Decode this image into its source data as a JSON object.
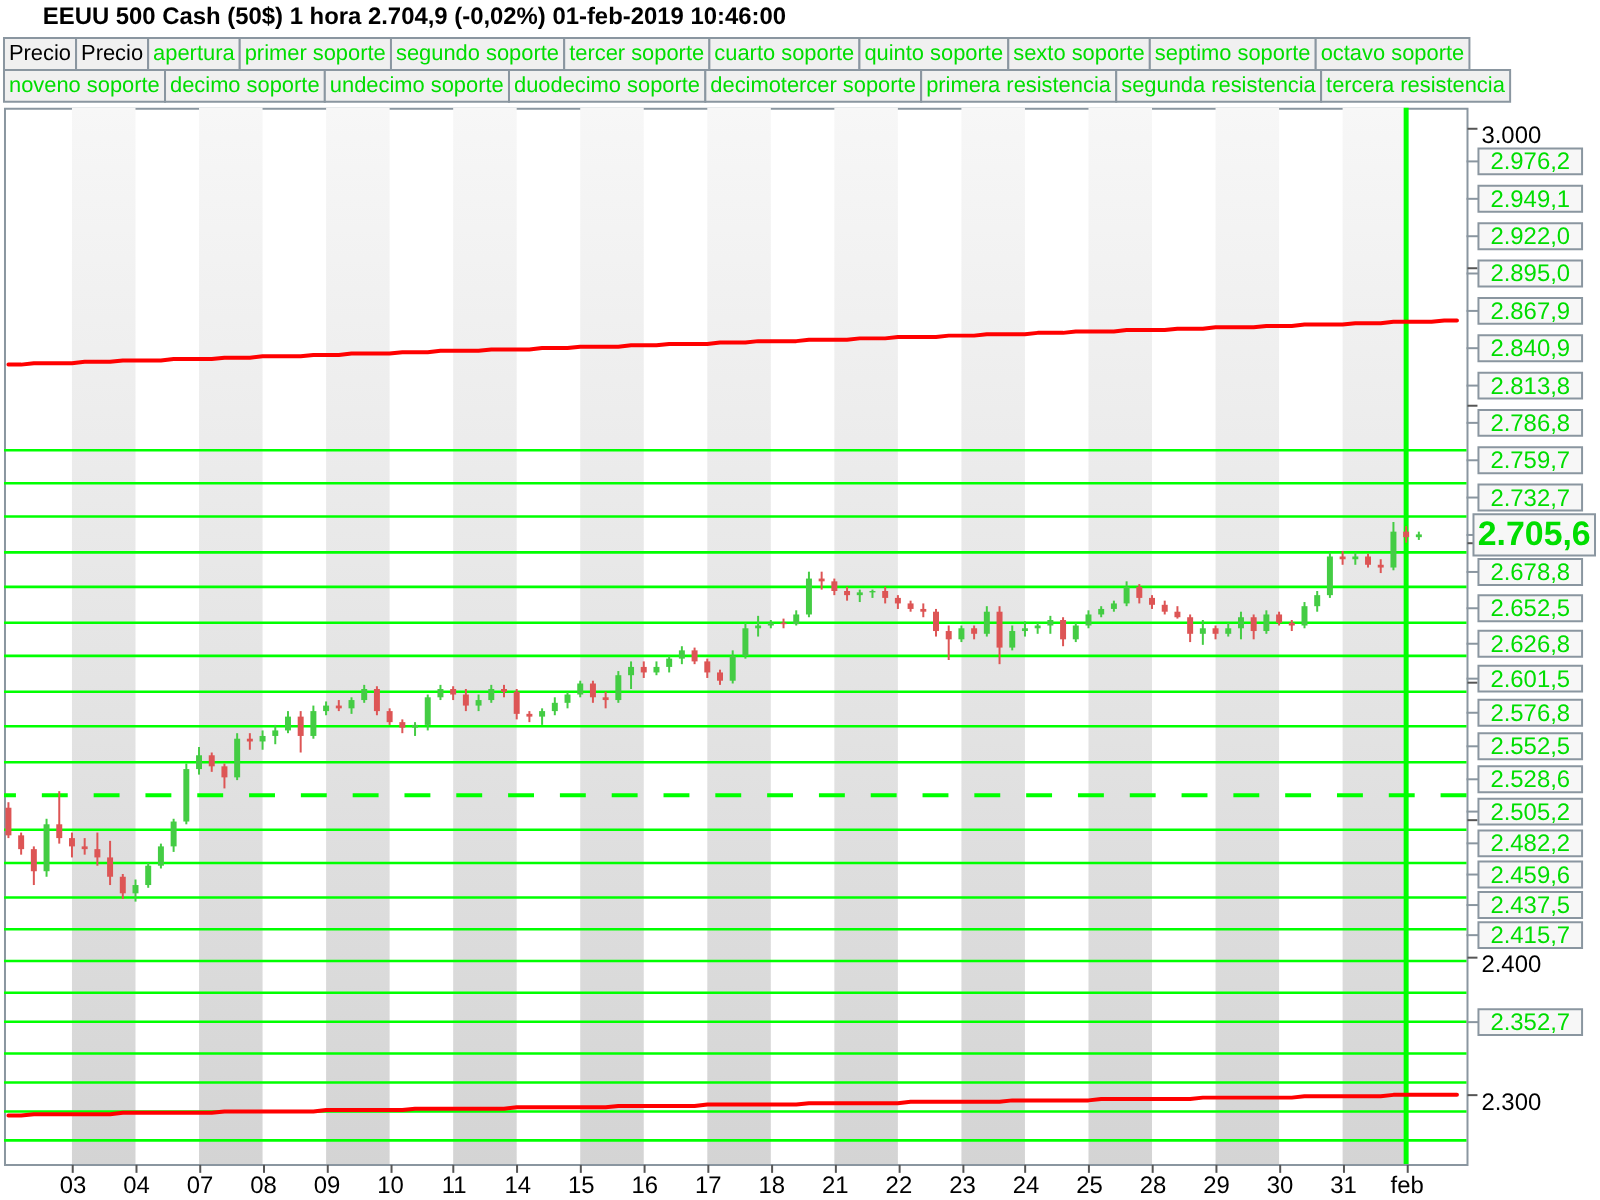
{
  "chart_data": {
    "type": "candlestick",
    "title": "EEUU 500 Cash (50$)   1 hora   2.704,9 (-0,02%)   01-feb-2019 10:46:00",
    "annotations": [
      "Precio",
      "Precio",
      "apertura",
      "primer soporte",
      "segundo soporte",
      "tercer soporte",
      "cuarto soporte",
      "quinto soporte",
      "sexto soporte",
      "septimo soporte",
      "octavo soporte",
      "noveno soporte",
      "decimo soporte",
      "undecimo soporte",
      "duodecimo soporte",
      "decimotercer soporte",
      "primera resistencia",
      "segunda resistencia",
      "tercera resistencia"
    ],
    "categories": [
      null,
      null,
      null,
      null,
      null,
      "03",
      null,
      null,
      null,
      null,
      "04",
      null,
      null,
      null,
      null,
      "07",
      null,
      null,
      null,
      null,
      "08",
      null,
      null,
      null,
      null,
      "09",
      null,
      null,
      null,
      null,
      "10",
      null,
      null,
      null,
      null,
      "11",
      null,
      null,
      null,
      null,
      "14",
      null,
      null,
      null,
      null,
      "15",
      null,
      null,
      null,
      null,
      "16",
      null,
      null,
      null,
      null,
      "17",
      null,
      null,
      null,
      null,
      "18",
      null,
      null,
      null,
      null,
      "21",
      null,
      null,
      null,
      null,
      "22",
      null,
      null,
      null,
      null,
      "23",
      null,
      null,
      null,
      null,
      "24",
      null,
      null,
      null,
      null,
      "25",
      null,
      null,
      null,
      null,
      "28",
      null,
      null,
      null,
      null,
      "29",
      null,
      null,
      null,
      null,
      "30",
      null,
      null,
      null,
      null,
      "31",
      null,
      null,
      null,
      null,
      "feb",
      null,
      null,
      null,
      null
    ],
    "ylim": [
      2250,
      3015
    ],
    "yticks": [
      {
        "value": 3000,
        "label": "3.000"
      },
      {
        "value": 2900,
        "label": null
      },
      {
        "value": 2800,
        "label": null
      },
      {
        "value": 2700,
        "label": null
      },
      {
        "value": 2600,
        "label": null
      },
      {
        "value": 2500,
        "label": null
      },
      {
        "value": 2400,
        "label": "2.400"
      },
      {
        "value": 2300,
        "label": "2.300"
      }
    ],
    "y2lim": [
      2250,
      3015
    ],
    "y2ticks": [
      {
        "value": 2976.2,
        "label": "2.976,2"
      },
      {
        "value": 2949.1,
        "label": "2.949,1"
      },
      {
        "value": 2922.0,
        "label": "2.922,0"
      },
      {
        "value": 2895.0,
        "label": "2.895,0"
      },
      {
        "value": 2867.9,
        "label": "2.867,9"
      },
      {
        "value": 2840.9,
        "label": "2.840,9"
      },
      {
        "value": 2813.8,
        "label": "2.813,8"
      },
      {
        "value": 2786.8,
        "label": "2.786,8"
      },
      {
        "value": 2759.7,
        "label": "2.759,7"
      },
      {
        "value": 2732.7,
        "label": "2.732,7"
      },
      {
        "value": 2705.6,
        "label": "2.705,6"
      },
      {
        "value": 2678.8,
        "label": "2.678,8"
      },
      {
        "value": 2652.5,
        "label": "2.652,5"
      },
      {
        "value": 2626.8,
        "label": "2.626,8"
      },
      {
        "value": 2601.5,
        "label": "2.601,5"
      },
      {
        "value": 2576.8,
        "label": "2.576,8"
      },
      {
        "value": 2552.5,
        "label": "2.552,5"
      },
      {
        "value": 2528.6,
        "label": "2.528,6"
      },
      {
        "value": 2505.2,
        "label": "2.505,2"
      },
      {
        "value": 2482.2,
        "label": "2.482,2"
      },
      {
        "value": 2459.6,
        "label": "2.459,6"
      },
      {
        "value": 2437.5,
        "label": "2.437,5"
      },
      {
        "value": 2415.7,
        "label": "2.415,7"
      },
      {
        "value": 2352.7,
        "label": "2.352,7"
      }
    ],
    "bands": [
      {
        "axis": "x",
        "from": "03",
        "to": "04",
        "color": "#d4d4d4"
      },
      {
        "axis": "x",
        "from": "07",
        "to": "08",
        "color": "#d4d4d4"
      },
      {
        "axis": "x",
        "from": "09",
        "to": "10",
        "color": "#d4d4d4"
      },
      {
        "axis": "x",
        "from": "11",
        "to": "14",
        "color": "#d4d4d4"
      },
      {
        "axis": "x",
        "from": "15",
        "to": "16",
        "color": "#d4d4d4"
      },
      {
        "axis": "x",
        "from": "17",
        "to": "18",
        "color": "#d4d4d4"
      },
      {
        "axis": "x",
        "from": "21",
        "to": "22",
        "color": "#d4d4d4"
      },
      {
        "axis": "x",
        "from": "23",
        "to": "24",
        "color": "#d4d4d4"
      },
      {
        "axis": "x",
        "from": "25",
        "to": "28",
        "color": "#d4d4d4"
      },
      {
        "axis": "x",
        "from": "29",
        "to": "30",
        "color": "#d4d4d4"
      },
      {
        "axis": "x",
        "from": "31",
        "to": "feb",
        "color": "#d4d4d4"
      }
    ],
    "ref_lines": [
      {
        "axis": "y",
        "value": 2767,
        "color": "#00ff00"
      },
      {
        "axis": "y",
        "value": 2743,
        "color": "#00ff00"
      },
      {
        "axis": "y",
        "value": 2719,
        "color": "#00ff00"
      },
      {
        "axis": "y",
        "value": 2693,
        "color": "#00ff00"
      },
      {
        "axis": "y",
        "value": 2668,
        "color": "#00ff00"
      },
      {
        "axis": "y",
        "value": 2642,
        "color": "#00ff00"
      },
      {
        "axis": "y",
        "value": 2618,
        "color": "#00ff00"
      },
      {
        "axis": "y",
        "value": 2592,
        "color": "#00ff00"
      },
      {
        "axis": "y",
        "value": 2567,
        "color": "#00ff00"
      },
      {
        "axis": "y",
        "value": 2541,
        "color": "#00ff00"
      },
      {
        "axis": "y",
        "value": 2517,
        "color": "#00ff00",
        "line_style": "dashed"
      },
      {
        "axis": "y",
        "value": 2492,
        "color": "#00ff00"
      },
      {
        "axis": "y",
        "value": 2468,
        "color": "#00ff00"
      },
      {
        "axis": "y",
        "value": 2443,
        "color": "#00ff00"
      },
      {
        "axis": "y",
        "value": 2420,
        "color": "#00ff00"
      },
      {
        "axis": "y",
        "value": 2397,
        "color": "#00ff00"
      },
      {
        "axis": "y",
        "value": 2374,
        "color": "#00ff00"
      },
      {
        "axis": "y",
        "value": 2353,
        "color": "#00ff00"
      },
      {
        "axis": "y",
        "value": 2330,
        "color": "#00ff00"
      },
      {
        "axis": "y",
        "value": 2309,
        "color": "#00ff00"
      },
      {
        "axis": "y",
        "value": 2288,
        "color": "#00ff00"
      },
      {
        "axis": "y",
        "value": 2267,
        "color": "#00ff00"
      },
      {
        "axis": "x",
        "value": "feb",
        "color": "#00ff00"
      }
    ],
    "series": [
      {
        "type": "line",
        "color": "#ff0000",
        "values": [
          2829,
          2829,
          2830,
          2830,
          2830,
          2830,
          2831,
          2831,
          2831,
          2832,
          2832,
          2832,
          2832,
          2833,
          2833,
          2833,
          2833,
          2834,
          2834,
          2834,
          2835,
          2835,
          2835,
          2835,
          2836,
          2836,
          2836,
          2837,
          2837,
          2837,
          2837,
          2838,
          2838,
          2838,
          2839,
          2839,
          2839,
          2839,
          2840,
          2840,
          2840,
          2840,
          2841,
          2841,
          2841,
          2842,
          2842,
          2842,
          2842,
          2843,
          2843,
          2843,
          2844,
          2844,
          2844,
          2844,
          2845,
          2845,
          2845,
          2846,
          2846,
          2846,
          2846,
          2847,
          2847,
          2847,
          2847,
          2848,
          2848,
          2848,
          2849,
          2849,
          2849,
          2849,
          2850,
          2850,
          2850,
          2851,
          2851,
          2851,
          2851,
          2852,
          2852,
          2852,
          2853,
          2853,
          2853,
          2853,
          2854,
          2854,
          2854,
          2854,
          2855,
          2855,
          2855,
          2856,
          2856,
          2856,
          2856,
          2857,
          2857,
          2857,
          2858,
          2858,
          2858,
          2858,
          2859,
          2859,
          2859,
          2860,
          2860,
          2860,
          2860,
          2861,
          2861
        ]
      },
      {
        "type": "line",
        "color": "#ff0000",
        "values": [
          2285,
          2285,
          2286,
          2286,
          2286,
          2286,
          2286,
          2286,
          2286,
          2287,
          2287,
          2287,
          2287,
          2287,
          2287,
          2287,
          2287,
          2288,
          2288,
          2288,
          2288,
          2288,
          2288,
          2288,
          2288,
          2289,
          2289,
          2289,
          2289,
          2289,
          2289,
          2289,
          2290,
          2290,
          2290,
          2290,
          2290,
          2290,
          2290,
          2290,
          2291,
          2291,
          2291,
          2291,
          2291,
          2291,
          2291,
          2291,
          2292,
          2292,
          2292,
          2292,
          2292,
          2292,
          2292,
          2293,
          2293,
          2293,
          2293,
          2293,
          2293,
          2293,
          2293,
          2294,
          2294,
          2294,
          2294,
          2294,
          2294,
          2294,
          2294,
          2295,
          2295,
          2295,
          2295,
          2295,
          2295,
          2295,
          2295,
          2296,
          2296,
          2296,
          2296,
          2296,
          2296,
          2296,
          2297,
          2297,
          2297,
          2297,
          2297,
          2297,
          2297,
          2297,
          2298,
          2298,
          2298,
          2298,
          2298,
          2298,
          2298,
          2298,
          2299,
          2299,
          2299,
          2299,
          2299,
          2299,
          2299,
          2300,
          2300,
          2300,
          2300,
          2300,
          2300
        ]
      }
    ],
    "ohlc": [
      [
        2508,
        2512,
        2486,
        2488
      ],
      [
        2488,
        2490,
        2474,
        2478
      ],
      [
        2478,
        2480,
        2452,
        2462
      ],
      [
        2462,
        2500,
        2458,
        2496
      ],
      [
        2496,
        2520,
        2482,
        2486
      ],
      [
        2486,
        2490,
        2472,
        2480
      ],
      [
        2480,
        2486,
        2474,
        2478
      ],
      [
        2478,
        2490,
        2466,
        2472
      ],
      [
        2472,
        2484,
        2452,
        2458
      ],
      [
        2458,
        2460,
        2442,
        2446
      ],
      [
        2446,
        2456,
        2440,
        2452
      ],
      [
        2452,
        2468,
        2450,
        2466
      ],
      [
        2466,
        2482,
        2464,
        2480
      ],
      [
        2480,
        2500,
        2476,
        2498
      ],
      [
        2498,
        2540,
        2496,
        2536
      ],
      [
        2536,
        2552,
        2532,
        2546
      ],
      [
        2546,
        2548,
        2534,
        2538
      ],
      [
        2538,
        2540,
        2522,
        2530
      ],
      [
        2530,
        2562,
        2528,
        2558
      ],
      [
        2558,
        2562,
        2550,
        2556
      ],
      [
        2556,
        2564,
        2550,
        2560
      ],
      [
        2560,
        2568,
        2554,
        2564
      ],
      [
        2564,
        2578,
        2562,
        2574
      ],
      [
        2574,
        2578,
        2548,
        2560
      ],
      [
        2560,
        2582,
        2558,
        2578
      ],
      [
        2578,
        2585,
        2575,
        2582
      ],
      [
        2582,
        2586,
        2578,
        2580
      ],
      [
        2580,
        2588,
        2576,
        2586
      ],
      [
        2586,
        2597,
        2584,
        2594
      ],
      [
        2594,
        2596,
        2575,
        2578
      ],
      [
        2578,
        2580,
        2568,
        2570
      ],
      [
        2570,
        2572,
        2562,
        2566
      ],
      [
        2566,
        2570,
        2560,
        2568
      ],
      [
        2568,
        2590,
        2564,
        2588
      ],
      [
        2588,
        2597,
        2586,
        2594
      ],
      [
        2594,
        2596,
        2586,
        2590
      ],
      [
        2590,
        2594,
        2578,
        2582
      ],
      [
        2582,
        2590,
        2578,
        2586
      ],
      [
        2586,
        2597,
        2584,
        2594
      ],
      [
        2594,
        2597,
        2588,
        2592
      ],
      [
        2592,
        2594,
        2572,
        2576
      ],
      [
        2576,
        2578,
        2570,
        2574
      ],
      [
        2574,
        2580,
        2568,
        2578
      ],
      [
        2578,
        2588,
        2575,
        2584
      ],
      [
        2584,
        2592,
        2580,
        2590
      ],
      [
        2590,
        2600,
        2588,
        2598
      ],
      [
        2598,
        2600,
        2584,
        2588
      ],
      [
        2588,
        2592,
        2580,
        2586
      ],
      [
        2586,
        2607,
        2584,
        2604
      ],
      [
        2604,
        2614,
        2594,
        2610
      ],
      [
        2610,
        2614,
        2602,
        2606
      ],
      [
        2606,
        2614,
        2604,
        2610
      ],
      [
        2610,
        2618,
        2606,
        2616
      ],
      [
        2616,
        2625,
        2612,
        2622
      ],
      [
        2622,
        2624,
        2612,
        2614
      ],
      [
        2614,
        2616,
        2602,
        2606
      ],
      [
        2606,
        2608,
        2597,
        2600
      ],
      [
        2600,
        2622,
        2598,
        2618
      ],
      [
        2618,
        2642,
        2616,
        2638
      ],
      [
        2638,
        2647,
        2632,
        2640
      ],
      [
        2640,
        2644,
        2638,
        2642
      ],
      [
        2642,
        2645,
        2638,
        2641
      ],
      [
        2641,
        2651,
        2640,
        2648
      ],
      [
        2648,
        2679,
        2646,
        2674
      ],
      [
        2674,
        2679,
        2666,
        2672
      ],
      [
        2672,
        2674,
        2662,
        2665
      ],
      [
        2665,
        2668,
        2658,
        2662
      ],
      [
        2662,
        2666,
        2657,
        2664
      ],
      [
        2664,
        2666,
        2660,
        2665
      ],
      [
        2665,
        2668,
        2656,
        2660
      ],
      [
        2660,
        2662,
        2652,
        2656
      ],
      [
        2656,
        2658,
        2650,
        2652
      ],
      [
        2652,
        2656,
        2646,
        2650
      ],
      [
        2650,
        2652,
        2632,
        2636
      ],
      [
        2636,
        2640,
        2615,
        2630
      ],
      [
        2630,
        2640,
        2628,
        2638
      ],
      [
        2638,
        2640,
        2630,
        2634
      ],
      [
        2634,
        2654,
        2632,
        2650
      ],
      [
        2650,
        2654,
        2612,
        2624
      ],
      [
        2624,
        2640,
        2622,
        2636
      ],
      [
        2636,
        2643,
        2632,
        2638
      ],
      [
        2638,
        2642,
        2634,
        2640
      ],
      [
        2640,
        2647,
        2634,
        2644
      ],
      [
        2644,
        2646,
        2625,
        2630
      ],
      [
        2630,
        2642,
        2628,
        2640
      ],
      [
        2640,
        2651,
        2638,
        2648
      ],
      [
        2648,
        2654,
        2646,
        2652
      ],
      [
        2652,
        2658,
        2650,
        2656
      ],
      [
        2656,
        2672,
        2654,
        2668
      ],
      [
        2668,
        2670,
        2656,
        2660
      ],
      [
        2660,
        2662,
        2652,
        2655
      ],
      [
        2655,
        2658,
        2648,
        2650
      ],
      [
        2650,
        2654,
        2645,
        2646
      ],
      [
        2646,
        2648,
        2628,
        2634
      ],
      [
        2634,
        2644,
        2626,
        2638
      ],
      [
        2638,
        2640,
        2630,
        2634
      ],
      [
        2634,
        2642,
        2632,
        2638
      ],
      [
        2638,
        2650,
        2630,
        2646
      ],
      [
        2646,
        2648,
        2630,
        2636
      ],
      [
        2636,
        2651,
        2634,
        2648
      ],
      [
        2648,
        2650,
        2640,
        2642
      ],
      [
        2642,
        2644,
        2636,
        2640
      ],
      [
        2640,
        2657,
        2638,
        2654
      ],
      [
        2654,
        2665,
        2650,
        2662
      ],
      [
        2662,
        2693,
        2660,
        2690
      ],
      [
        2690,
        2694,
        2684,
        2688
      ],
      [
        2688,
        2693,
        2684,
        2690
      ],
      [
        2690,
        2692,
        2682,
        2684
      ],
      [
        2684,
        2688,
        2678,
        2682
      ],
      [
        2682,
        2715,
        2680,
        2708
      ],
      [
        2708,
        2712,
        2700,
        2704
      ],
      [
        2704,
        2708,
        2702,
        2706
      ],
      null,
      null,
      null
    ]
  }
}
